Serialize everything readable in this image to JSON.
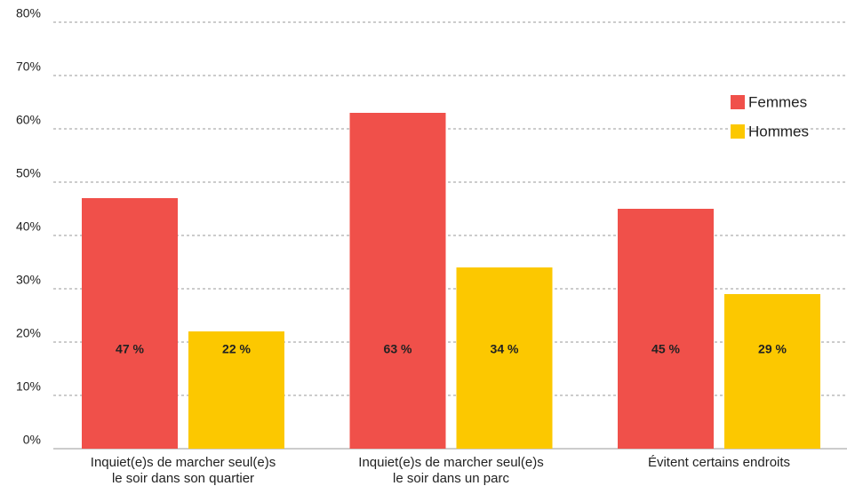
{
  "chart_data": {
    "type": "bar",
    "categories": [
      "Inquiet(e)s de marcher seul(e)s\nle soir dans son quartier",
      "Inquiet(e)s de marcher seul(e)s\nle soir dans un parc",
      "Évitent certains endroits"
    ],
    "series": [
      {
        "name": "Femmes",
        "color": "#f0504a",
        "values": [
          47,
          63,
          45
        ],
        "value_labels": [
          "47 %",
          "63 %",
          "45 %"
        ]
      },
      {
        "name": "Hommes",
        "color": "#fcc800",
        "values": [
          22,
          34,
          29
        ],
        "value_labels": [
          "22 %",
          "34 %",
          "29 %"
        ]
      }
    ],
    "ylim": [
      0,
      80
    ],
    "yticks": [
      {
        "value": 0,
        "label": "0%"
      },
      {
        "value": 10,
        "label": "10%"
      },
      {
        "value": 20,
        "label": "20%"
      },
      {
        "value": 30,
        "label": "30%"
      },
      {
        "value": 40,
        "label": "40%"
      },
      {
        "value": 50,
        "label": "50%"
      },
      {
        "value": 60,
        "label": "60%"
      },
      {
        "value": 70,
        "label": "70%"
      },
      {
        "value": 80,
        "label": "80%"
      }
    ],
    "grid": true,
    "legend": "upper right"
  }
}
